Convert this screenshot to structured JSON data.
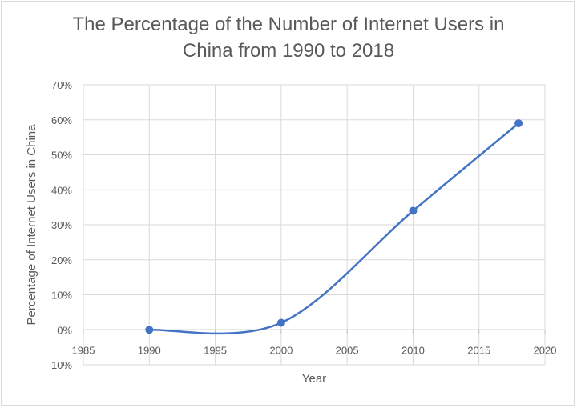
{
  "chart_data": {
    "type": "scatter",
    "title_lines": [
      "The Percentage of the Number of Internet Users in",
      "China from 1990 to 2018"
    ],
    "xlabel": "Year",
    "ylabel": "Percentage of Internet Users in China",
    "xlim": [
      1985,
      2020
    ],
    "ylim": [
      -10,
      70
    ],
    "x_ticks": [
      "1985",
      "1990",
      "1995",
      "2000",
      "2005",
      "2010",
      "2015",
      "2020"
    ],
    "y_ticks": [
      "-10%",
      "0%",
      "10%",
      "20%",
      "30%",
      "40%",
      "50%",
      "60%",
      "70%"
    ],
    "grid": true,
    "smooth_line": true,
    "series": [
      {
        "x": [
          1990,
          2000,
          2010,
          2018
        ],
        "y": [
          0,
          2,
          34,
          59
        ]
      }
    ],
    "colors": {
      "series": "#4472c4",
      "grid": "#d9d9d9",
      "text": "#595959"
    }
  }
}
